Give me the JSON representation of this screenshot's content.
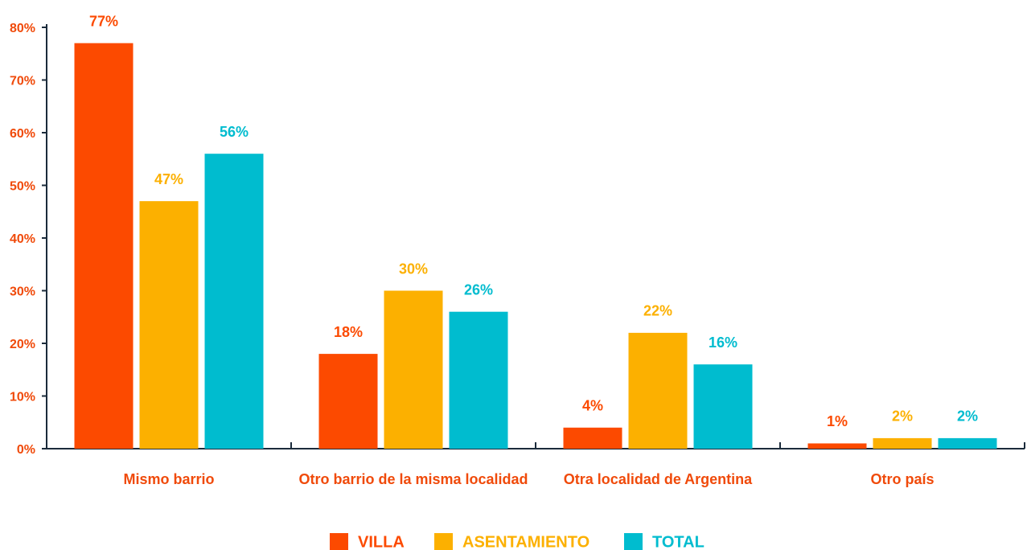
{
  "chart_data": {
    "type": "bar",
    "categories": [
      "Mismo barrio",
      "Otro barrio de la misma localidad",
      "Otra localidad de Argentina",
      "Otro país"
    ],
    "series": [
      {
        "name": "VILLA",
        "color": "#fc4a00",
        "values": [
          77,
          18,
          4,
          1
        ],
        "value_labels": [
          "77%",
          "18%",
          "4%",
          "1%"
        ]
      },
      {
        "name": "ASENTAMIENTO",
        "color": "#fcb000",
        "values": [
          47,
          30,
          22,
          2
        ],
        "value_labels": [
          "47%",
          "30%",
          "22%",
          "2%"
        ]
      },
      {
        "name": "TOTAL",
        "color": "#00bccf",
        "values": [
          56,
          26,
          16,
          2
        ],
        "value_labels": [
          "56%",
          "26%",
          "16%",
          "2%"
        ]
      }
    ],
    "ylim": [
      0,
      80
    ],
    "yticks": [
      {
        "value": 0,
        "label": "0%"
      },
      {
        "value": 10,
        "label": "10%"
      },
      {
        "value": 20,
        "label": "20%"
      },
      {
        "value": 30,
        "label": "30%"
      },
      {
        "value": 40,
        "label": "40%"
      },
      {
        "value": 50,
        "label": "50%"
      },
      {
        "value": 60,
        "label": "60%"
      },
      {
        "value": 70,
        "label": "70%"
      },
      {
        "value": 80,
        "label": "80%"
      }
    ],
    "legend": "bottom",
    "grid": false
  }
}
